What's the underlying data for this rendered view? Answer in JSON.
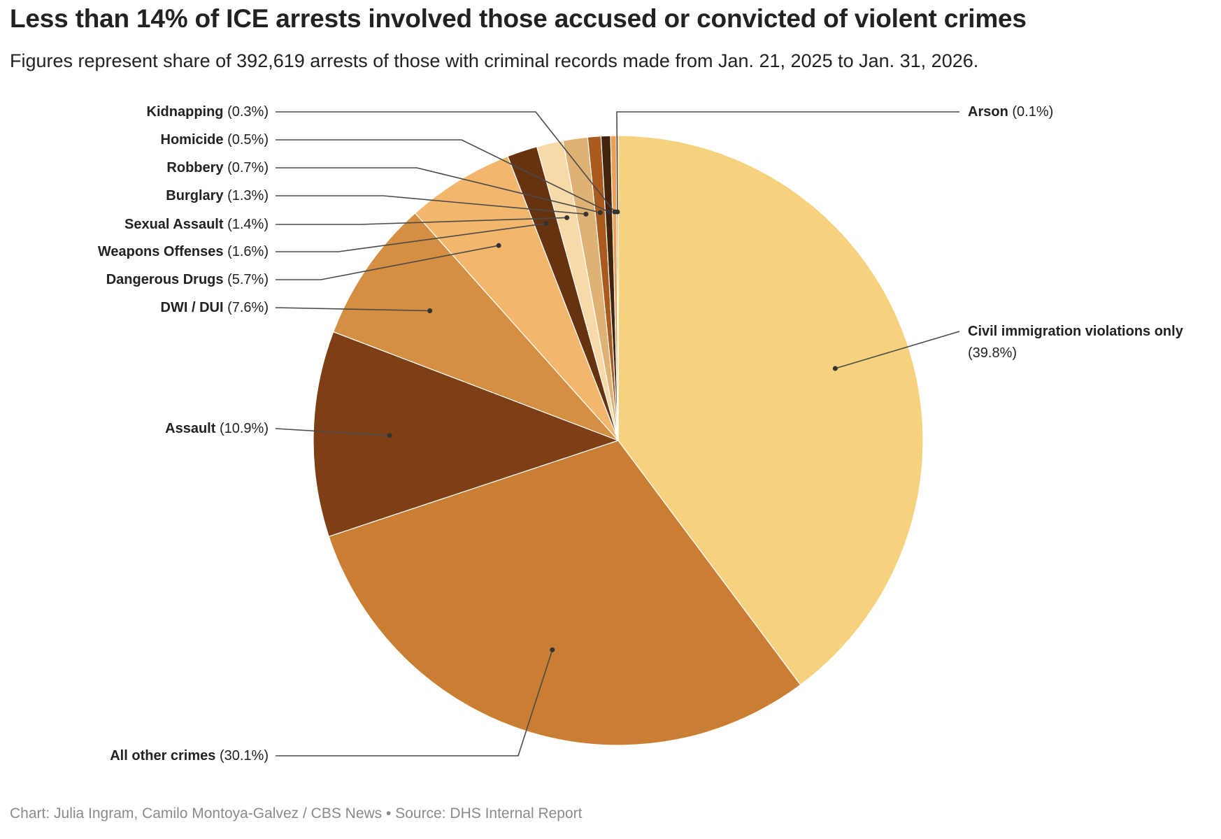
{
  "chart_data": {
    "type": "pie",
    "title": "Less than 14% of ICE arrests involved those accused or convicted of violent crimes",
    "subtitle": "Figures represent share of 392,619 arrests of those with criminal records made from Jan. 21, 2025 to Jan. 31, 2026.",
    "unit": "%",
    "slices": [
      {
        "label": "Civil immigration violations only",
        "value": 39.8,
        "display": "(39.8%)",
        "color": "#f6d17e"
      },
      {
        "label": "All other crimes",
        "value": 30.1,
        "display": "(30.1%)",
        "color": "#c97e33"
      },
      {
        "label": "Assault",
        "value": 10.9,
        "display": "(10.9%)",
        "color": "#7f3f15"
      },
      {
        "label": "DWI / DUI",
        "value": 7.6,
        "display": "(7.6%)",
        "color": "#d48f42"
      },
      {
        "label": "Dangerous Drugs",
        "value": 5.7,
        "display": "(5.7%)",
        "color": "#f2b66c"
      },
      {
        "label": "Weapons Offenses",
        "value": 1.6,
        "display": "(1.6%)",
        "color": "#66320f"
      },
      {
        "label": "Sexual Assault",
        "value": 1.4,
        "display": "(1.4%)",
        "color": "#f8d9a8"
      },
      {
        "label": "Burglary",
        "value": 1.3,
        "display": "(1.3%)",
        "color": "#dfb274"
      },
      {
        "label": "Robbery",
        "value": 0.7,
        "display": "(0.7%)",
        "color": "#a95a1c"
      },
      {
        "label": "Homicide",
        "value": 0.5,
        "display": "(0.5%)",
        "color": "#45220a"
      },
      {
        "label": "Kidnapping",
        "value": 0.3,
        "display": "(0.3%)",
        "color": "#ee9f50"
      },
      {
        "label": "Arson",
        "value": 0.1,
        "display": "(0.1%)",
        "color": "#b86a28"
      }
    ]
  },
  "footer": "Chart: Julia Ingram, Camilo Montoya-Galvez / CBS News • Source: DHS Internal Report"
}
